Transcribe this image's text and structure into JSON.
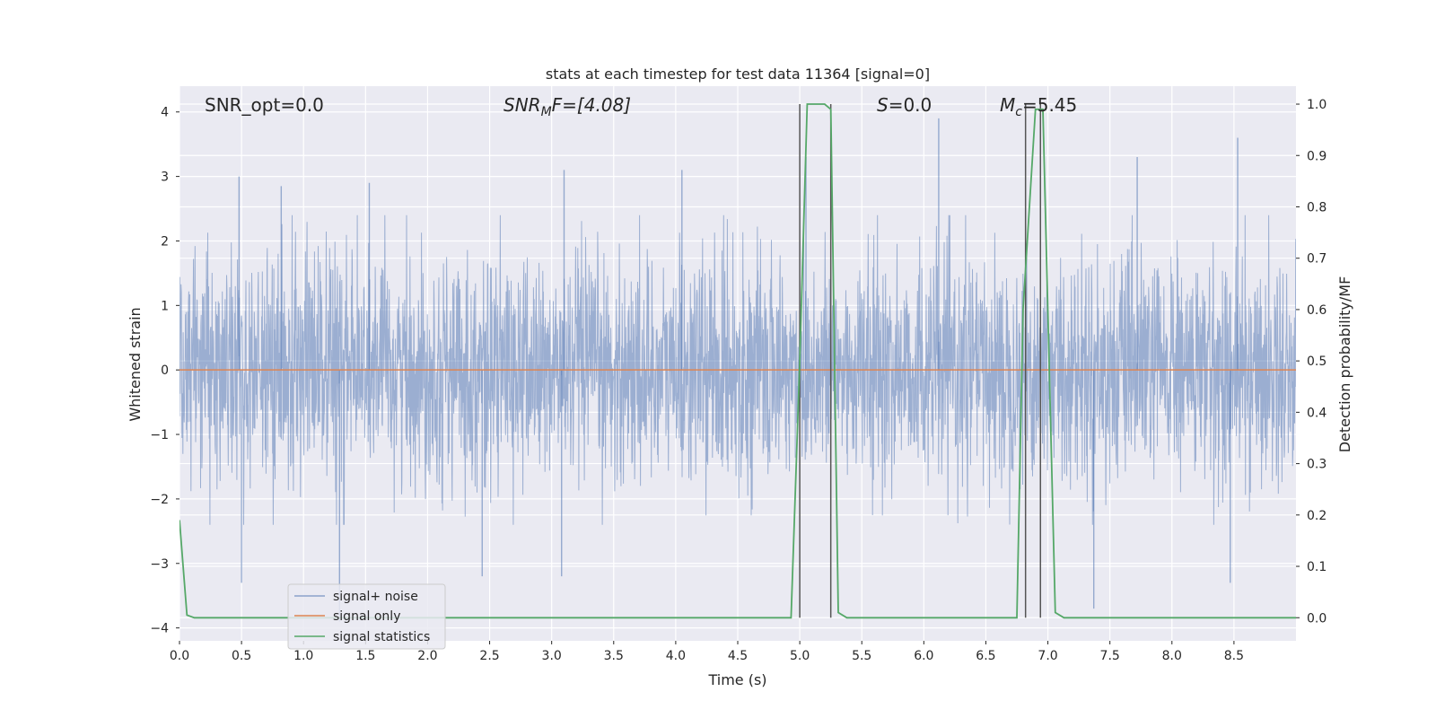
{
  "chart_data": {
    "type": "line",
    "title": "stats at each timestep for test data 11364 [signal=0]",
    "xlabel": "Time (s)",
    "ylabel_left": "Whitened strain",
    "ylabel_right": "Detection probability/MF",
    "xlim": [
      0.0,
      9.0
    ],
    "ylim_left": [
      -4.2,
      4.4
    ],
    "ylim_right": [
      -0.045,
      1.035
    ],
    "x_ticks": [
      "0.0",
      "0.5",
      "1.0",
      "1.5",
      "2.0",
      "2.5",
      "3.0",
      "3.5",
      "4.0",
      "4.5",
      "5.0",
      "5.5",
      "6.0",
      "6.5",
      "7.0",
      "7.5",
      "8.0",
      "8.5"
    ],
    "y_left_ticks": [
      "−4",
      "−3",
      "−2",
      "−1",
      "0",
      "1",
      "2",
      "3",
      "4"
    ],
    "y_right_ticks": [
      "0.0",
      "0.1",
      "0.2",
      "0.3",
      "0.4",
      "0.5",
      "0.6",
      "0.7",
      "0.8",
      "0.9",
      "1.0"
    ],
    "grid": true,
    "legend_location": "lower-left",
    "annotations": {
      "snr_opt": "SNR_opt=0.0",
      "snr_mf_main": "SNR",
      "snr_mf_sub": "M",
      "snr_mf_rest": "F=[4.08]",
      "s_italic": "S",
      "s_rest": "=0.0",
      "mc_main": "M",
      "mc_sub": "c",
      "mc_rest": "=5.45"
    },
    "series": [
      {
        "name": "signal+ noise",
        "color": "#4c72b0",
        "description_of_values": "whitened noise, roughly within ±2 with spikes to ±3.7",
        "peaks": [
          [
            0.48,
            3.0
          ],
          [
            0.82,
            2.85
          ],
          [
            1.53,
            2.9
          ],
          [
            3.1,
            3.1
          ],
          [
            4.05,
            3.1
          ],
          [
            5.05,
            3.3
          ],
          [
            6.12,
            3.9
          ],
          [
            7.72,
            3.3
          ],
          [
            8.53,
            3.6
          ],
          [
            1.29,
            -3.9
          ],
          [
            2.44,
            -3.2
          ],
          [
            3.08,
            -3.2
          ],
          [
            7.37,
            -3.7
          ],
          [
            8.47,
            -3.3
          ],
          [
            0.5,
            -3.3
          ]
        ]
      },
      {
        "name": "signal only",
        "color": "#dd8452",
        "x": [
          0.0,
          9.0
        ],
        "y": [
          0.0,
          0.0
        ]
      },
      {
        "name": "signal statistics",
        "color": "#55a868",
        "axis": "right",
        "x": [
          0.0,
          0.06,
          0.12,
          4.93,
          5.0,
          5.06,
          5.2,
          5.25,
          5.31,
          5.38,
          6.75,
          6.8,
          6.9,
          6.96,
          7.06,
          7.13,
          9.0
        ],
        "y": [
          0.19,
          0.005,
          0.0,
          0.0,
          0.5,
          1.0,
          1.0,
          0.99,
          0.01,
          0.0,
          0.0,
          0.6,
          0.99,
          0.99,
          0.01,
          0.0,
          0.0
        ]
      }
    ],
    "vertical_lines_x": [
      5.0,
      5.25,
      6.82,
      6.94
    ],
    "vertical_lines_color": "#555555"
  }
}
